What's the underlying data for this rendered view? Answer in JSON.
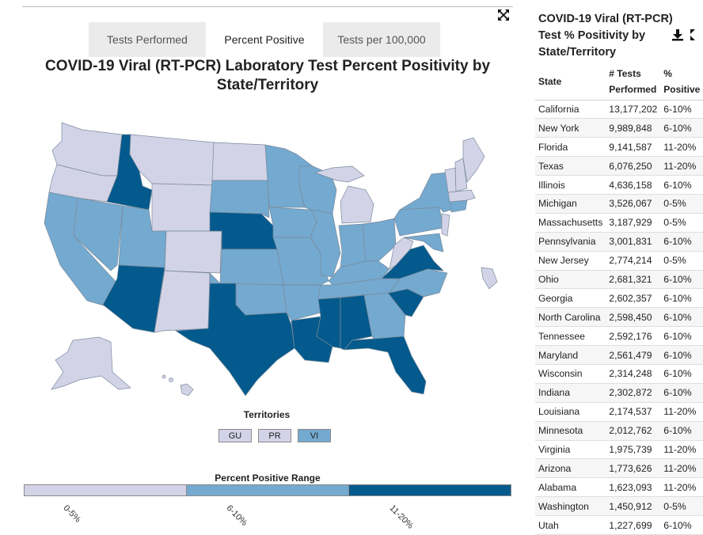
{
  "tabs": [
    {
      "label": "Tests Performed",
      "active": false
    },
    {
      "label": "Percent Positive",
      "active": true
    },
    {
      "label": "Tests per 100,000",
      "active": false
    }
  ],
  "map": {
    "title": "COVID-19 Viral (RT-PCR) Laboratory Test Percent Positivity by State/Territory",
    "territories_title": "Territories",
    "territories": [
      {
        "code": "GU",
        "range": "0-5%"
      },
      {
        "code": "PR",
        "range": "0-5%"
      },
      {
        "code": "VI",
        "range": "6-10%"
      }
    ],
    "legend_title": "Percent Positive Range",
    "legend": [
      {
        "label": "0-5%",
        "color": "#d3d3e8"
      },
      {
        "label": "6-10%",
        "color": "#74a9d0"
      },
      {
        "label": "11-20%",
        "color": "#045a8d"
      }
    ]
  },
  "table": {
    "title": "COVID-19 Viral (RT-PCR) Test % Positivity by State/Territory",
    "headers": {
      "state": "State",
      "tests": "# Tests Performed",
      "pct": "% Positive"
    },
    "rows": [
      {
        "state": "California",
        "tests": "13,177,202",
        "pct": "6-10%"
      },
      {
        "state": "New York",
        "tests": "9,989,848",
        "pct": "6-10%"
      },
      {
        "state": "Florida",
        "tests": "9,141,587",
        "pct": "11-20%"
      },
      {
        "state": "Texas",
        "tests": "6,076,250",
        "pct": "11-20%"
      },
      {
        "state": "Illinois",
        "tests": "4,636,158",
        "pct": "6-10%"
      },
      {
        "state": "Michigan",
        "tests": "3,526,067",
        "pct": "0-5%"
      },
      {
        "state": "Massachusetts",
        "tests": "3,187,929",
        "pct": "0-5%"
      },
      {
        "state": "Pennsylvania",
        "tests": "3,001,831",
        "pct": "6-10%"
      },
      {
        "state": "New Jersey",
        "tests": "2,774,214",
        "pct": "0-5%"
      },
      {
        "state": "Ohio",
        "tests": "2,681,321",
        "pct": "6-10%"
      },
      {
        "state": "Georgia",
        "tests": "2,602,357",
        "pct": "6-10%"
      },
      {
        "state": "North Carolina",
        "tests": "2,598,450",
        "pct": "6-10%"
      },
      {
        "state": "Tennessee",
        "tests": "2,592,176",
        "pct": "6-10%"
      },
      {
        "state": "Maryland",
        "tests": "2,561,479",
        "pct": "6-10%"
      },
      {
        "state": "Wisconsin",
        "tests": "2,314,248",
        "pct": "6-10%"
      },
      {
        "state": "Indiana",
        "tests": "2,302,872",
        "pct": "6-10%"
      },
      {
        "state": "Louisiana",
        "tests": "2,174,537",
        "pct": "11-20%"
      },
      {
        "state": "Minnesota",
        "tests": "2,012,762",
        "pct": "6-10%"
      },
      {
        "state": "Virginia",
        "tests": "1,975,739",
        "pct": "11-20%"
      },
      {
        "state": "Arizona",
        "tests": "1,773,626",
        "pct": "11-20%"
      },
      {
        "state": "Alabama",
        "tests": "1,623,093",
        "pct": "11-20%"
      },
      {
        "state": "Washington",
        "tests": "1,450,912",
        "pct": "0-5%"
      },
      {
        "state": "Utah",
        "tests": "1,227,699",
        "pct": "6-10%"
      }
    ]
  },
  "icons": {
    "expand": "expand-arrows-icon",
    "download": "download-icon",
    "table_expand": "expand-icon"
  }
}
